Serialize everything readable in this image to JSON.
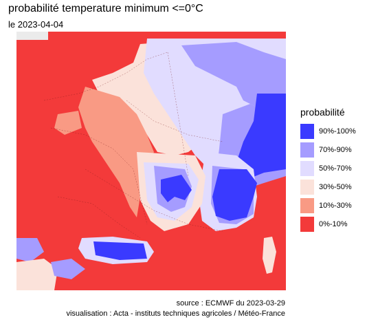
{
  "header": {
    "title": "probabilité temperature minimum <=0°C",
    "subtitle": "le 2023-04-04"
  },
  "legend": {
    "title": "probabilité",
    "items": [
      {
        "label": "90%-100%",
        "color": "#3a3aff"
      },
      {
        "label": "70%-90%",
        "color": "#a59cff"
      },
      {
        "label": "50%-70%",
        "color": "#e1dcff"
      },
      {
        "label": "30%-50%",
        "color": "#fbe2da"
      },
      {
        "label": "10%-30%",
        "color": "#f99a84"
      },
      {
        "label": "0%-10%",
        "color": "#f33a3a"
      }
    ]
  },
  "caption": {
    "source": "source : ECMWF du 2023-03-29",
    "credit": "visualisation : Acta - instituts techniques agricoles / Météo-France"
  }
}
